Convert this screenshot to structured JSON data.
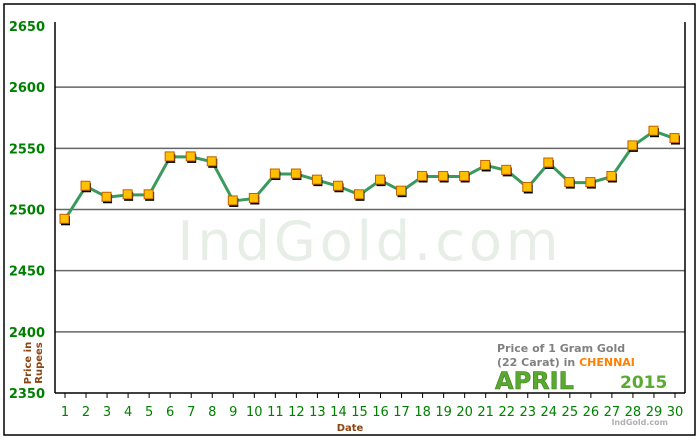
{
  "chart_data": {
    "type": "line",
    "title": "Price of 1 Gram Gold (22 Carat) in CHENNAI",
    "title_line1": "Price of 1 Gram Gold",
    "title_line2_prefix": "(22 Carat) in",
    "city": "CHENNAI",
    "month": "APRIL",
    "year": "2015",
    "xlabel": "Date",
    "ylabel_line1": "Price in",
    "ylabel_line2": "Rupees",
    "watermark": "IndGold.com",
    "credit": "IndGold.com",
    "ylim": [
      2350,
      2650
    ],
    "yticks": [
      2350,
      2400,
      2450,
      2500,
      2550,
      2600,
      2650
    ],
    "grid": true,
    "x": [
      1,
      2,
      3,
      4,
      5,
      6,
      7,
      8,
      9,
      10,
      11,
      12,
      13,
      14,
      15,
      16,
      17,
      18,
      19,
      20,
      21,
      22,
      23,
      24,
      25,
      26,
      27,
      28,
      29,
      30
    ],
    "values": [
      2492,
      2519,
      2510,
      2512,
      2512,
      2543,
      2543,
      2539,
      2507,
      2509,
      2529,
      2529,
      2524,
      2519,
      2512,
      2524,
      2515,
      2527,
      2527,
      2527,
      2536,
      2532,
      2518,
      2538,
      2522,
      2522,
      2527,
      2552,
      2564,
      2558
    ],
    "colors": {
      "line": "#3a9a5e",
      "marker": "#ffc000",
      "marker_border": "#c06000",
      "axis_labels": "#008000",
      "title_gray": "#808080",
      "city": "#ff7f00",
      "xlabel": "#8b4513"
    }
  }
}
